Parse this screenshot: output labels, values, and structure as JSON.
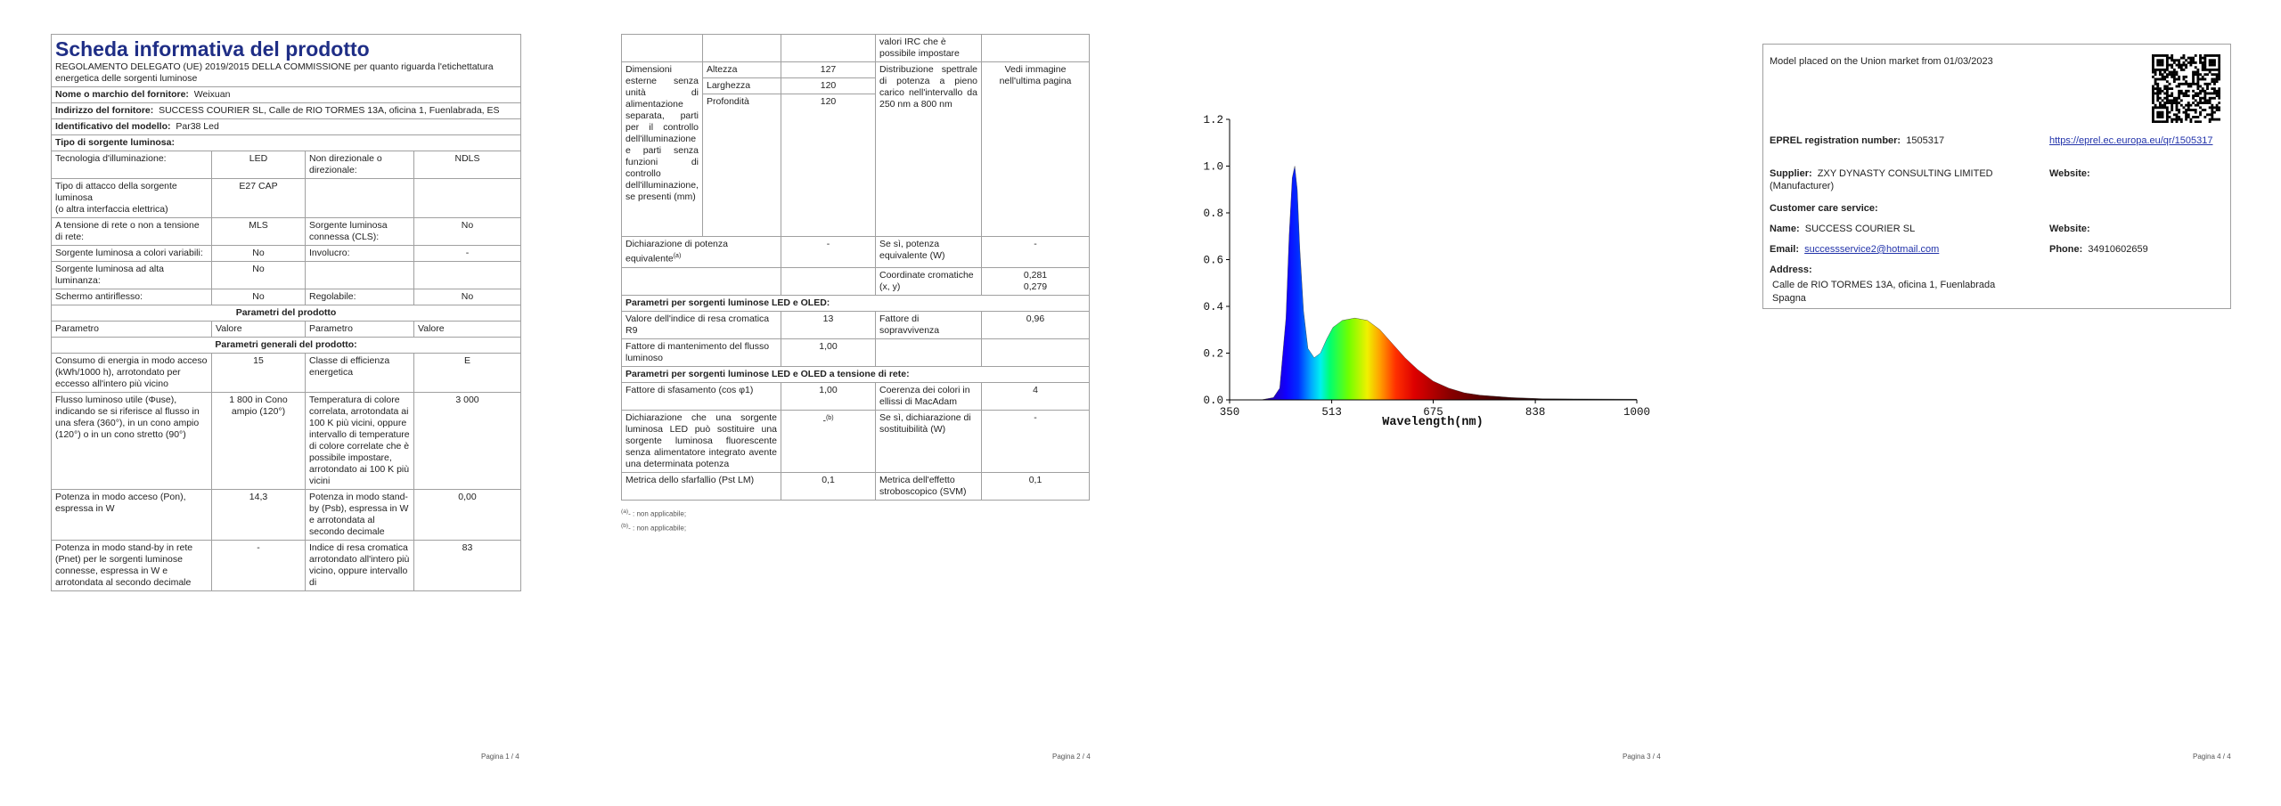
{
  "page1": {
    "title": "Scheda informativa del prodotto",
    "subtitle": "REGOLAMENTO DELEGATO (UE) 2019/2015 DELLA COMMISSIONE per quanto riguarda l'etichettatura energetica delle sorgenti luminose",
    "supplier_name": {
      "label": "Nome o marchio del fornitore:",
      "value": "Weixuan"
    },
    "supplier_address": {
      "label": "Indirizzo del fornitore:",
      "value": "SUCCESS COURIER SL, Calle de RIO TORMES 13A, oficina 1, Fuenlabrada, ES"
    },
    "model": {
      "label": "Identificativo del modello:",
      "value": "Par38 Led"
    },
    "source_type": "Tipo di sorgente luminosa:",
    "source": [
      {
        "label": "Tecnologia d'illuminazione:",
        "value": "LED",
        "label2": "Non direzionale o direzionale:",
        "value2": "NDLS"
      },
      {
        "label": "Tipo di attacco della sorgente luminosa\n(o altra interfaccia elettrica)",
        "value": "E27 CAP"
      },
      {
        "label": "A tensione di rete o non a tensione di rete:",
        "value": "MLS",
        "label2": "Sorgente luminosa connessa (CLS):",
        "value2": "No"
      },
      {
        "label": "Sorgente luminosa a colori variabili:",
        "value": "No",
        "label2": "Involucro:",
        "value2": "-"
      },
      {
        "label": "Sorgente luminosa ad alta luminanza:",
        "value": "No"
      },
      {
        "label": "Schermo antiriflesso:",
        "value": "No",
        "label2": "Regolabile:",
        "value2": "No"
      }
    ],
    "product_params": "Parametri del prodotto",
    "col_headers": [
      "Parametro",
      "Valore",
      "Parametro",
      "Valore"
    ],
    "general_params": "Parametri generali del prodotto:",
    "general": [
      {
        "label": "Consumo di energia in modo acceso (kWh/1000 h), arrotondato per eccesso all'intero più vicino",
        "value": "15",
        "label2": "Classe di efficienza energetica",
        "value2": "E"
      },
      {
        "label": "Flusso luminoso utile (Φuse), indicando se si riferisce al flusso in una sfera (360°), in un cono ampio (120°) o in un cono stretto (90°)",
        "value": "1 800 in Cono ampio (120°)",
        "label2": "Temperatura di colore correlata, arrotondata ai 100 K più vicini, oppure intervallo di temperature di colore correlate che è possibile impostare, arrotondato ai 100 K più vicini",
        "value2": "3 000"
      },
      {
        "label": "Potenza in modo acceso (Pon), espressa in W",
        "value": "14,3",
        "label2": "Potenza in modo stand-by (Psb), espressa in W e arrotondata al secondo decimale",
        "value2": "0,00"
      },
      {
        "label": "Potenza in modo stand-by in rete (Pnet) per le sorgenti luminose connesse, espressa in W e arrotondata al secondo decimale",
        "value": "-",
        "label2": "Indice di resa cromatica arrotondato all'intero più vicino, oppure intervallo di",
        "value2": "83"
      }
    ]
  },
  "page2": {
    "cont_text": "valori IRC che è possibile impostare",
    "dimensions": {
      "label": "Dimensioni esterne senza unità di alimentazione separata, parti per il controllo dell'illuminazione e parti senza funzioni di controllo dell'illuminazione, se presenti (mm)",
      "items": [
        {
          "name": "Altezza",
          "value": "127"
        },
        {
          "name": "Larghezza",
          "value": "120"
        },
        {
          "name": "Profondità",
          "value": "120"
        }
      ]
    },
    "spectral": {
      "label": "Distribuzione spettrale di potenza a pieno carico nell'intervallo da 250 nm a 800 nm",
      "value": "Vedi immagine nell'ultima pagina"
    },
    "equiv": {
      "label": "Dichiarazione di potenza equivalente",
      "note": "(a)",
      "value": "-",
      "label2": "Se sì, potenza equivalente (W)",
      "value2": "-"
    },
    "chroma": {
      "label": "Coordinate cromatiche (x, y)",
      "x": "0,281",
      "y": "0,279"
    },
    "led_heading": "Parametri per sorgenti luminose LED e OLED:",
    "r9": {
      "label": "Valore dell'indice di resa cromatica R9",
      "value": "13",
      "label2": "Fattore di sopravvivenza",
      "value2": "0,96"
    },
    "maint": {
      "label": "Fattore di mantenimento del flusso luminoso",
      "value": "1,00"
    },
    "mains_heading": "Parametri per sorgenti luminose LED e OLED a tensione di rete:",
    "phase": {
      "label": "Fattore di sfasamento (cos φ1)",
      "value": "1,00",
      "label2": "Coerenza dei colori in ellissi di MacAdam",
      "value2": "4"
    },
    "replace": {
      "label": "Dichiarazione che una sorgente luminosa LED può sostituire una sorgente luminosa fluorescente senza alimentatore integrato avente una determinata potenza",
      "value": "-",
      "note": "(b)",
      "label2": "Se sì, dichiarazione di sostituibilità (W)",
      "value2": "-"
    },
    "flicker": {
      "label": "Metrica dello sfarfallio (Pst LM)",
      "value": "0,1",
      "label2": "Metrica dell'effetto stroboscopico (SVM)",
      "value2": "0,1"
    },
    "footnotes": [
      {
        "mark": "(a)",
        "text": "- : non applicabile;"
      },
      {
        "mark": "(b)",
        "text": "- : non applicabile;"
      }
    ]
  },
  "chart_data": {
    "type": "area",
    "xlabel": "Wavelength(nm)",
    "x": [
      350,
      400,
      420,
      430,
      440,
      445,
      450,
      454,
      458,
      462,
      468,
      475,
      485,
      495,
      505,
      515,
      530,
      550,
      570,
      590,
      610,
      630,
      650,
      675,
      700,
      725,
      750,
      800,
      850,
      900,
      1000
    ],
    "values": [
      0,
      0,
      0.01,
      0.05,
      0.35,
      0.7,
      0.95,
      1.0,
      0.9,
      0.65,
      0.38,
      0.22,
      0.18,
      0.2,
      0.26,
      0.31,
      0.34,
      0.35,
      0.34,
      0.3,
      0.24,
      0.18,
      0.13,
      0.08,
      0.05,
      0.03,
      0.02,
      0.01,
      0.005,
      0.004,
      0.003
    ],
    "xlim": [
      350,
      1000
    ],
    "ylim": [
      0,
      1.2
    ],
    "xticks": [
      350,
      513,
      675,
      838,
      1000
    ],
    "yticks": [
      {
        "value": 0,
        "label": "0.0"
      },
      0.2,
      0.4,
      0.6,
      0.8,
      {
        "value": 1,
        "label": "1.0"
      },
      1.2
    ]
  },
  "page4": {
    "placed": "Model placed on the Union market from 01/03/2023",
    "eprel": {
      "label": "EPREL registration number:",
      "value": "1505317",
      "url": "https://eprel.ec.europa.eu/qr/1505317"
    },
    "supplier": {
      "label": "Supplier:",
      "value": "ZXY DYNASTY CONSULTING LIMITED (Manufacturer)",
      "website": "Website:"
    },
    "care": "Customer care service:",
    "name": {
      "label": "Name:",
      "value": "SUCCESS COURIER SL",
      "website": "Website:"
    },
    "email": {
      "label": "Email:",
      "value": "successservice2@hotmail.com",
      "phone_label": "Phone:",
      "phone": "34910602659"
    },
    "address": {
      "label": "Address:",
      "line1": "Calle de RIO TORMES 13A, oficina 1, Fuenlabrada",
      "line2": "Spagna"
    }
  },
  "footers": [
    "Pagina 1 / 4",
    "Pagina 2 / 4",
    "Pagina 3 / 4",
    "Pagina 4 / 4"
  ]
}
